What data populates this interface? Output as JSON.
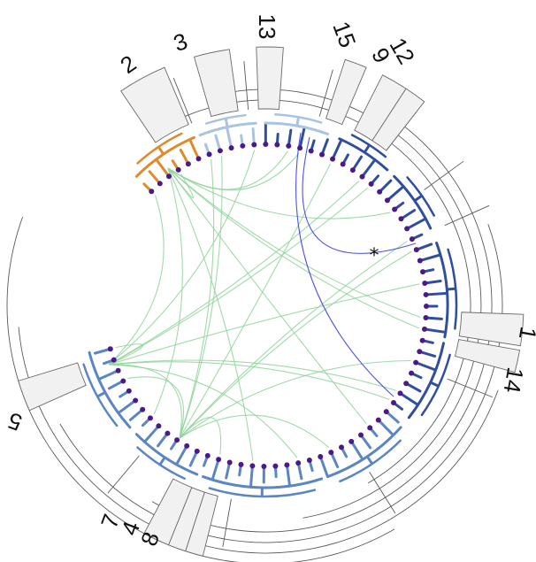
{
  "clade_labels": [
    {
      "id": "c2",
      "text": "2"
    },
    {
      "id": "c3",
      "text": "3"
    },
    {
      "id": "c13",
      "text": "13"
    },
    {
      "id": "c15",
      "text": "15"
    },
    {
      "id": "c9",
      "text": "9"
    },
    {
      "id": "c12",
      "text": "12"
    },
    {
      "id": "c1",
      "text": "1"
    },
    {
      "id": "c14",
      "text": "14"
    },
    {
      "id": "c5",
      "text": "5"
    },
    {
      "id": "c7",
      "text": "7"
    },
    {
      "id": "c4",
      "text": "4"
    },
    {
      "id": "c8",
      "text": "8"
    }
  ],
  "annotation": "*",
  "colors": {
    "orange": "#e08a2c",
    "light_blue": "#a9c4e0",
    "mid_blue": "#5b86c4",
    "dark_blue": "#2f4f9e",
    "link_green": "#8fd39a",
    "link_blue": "#3b3fe0",
    "leaf_purple": "#4a1a8c"
  }
}
